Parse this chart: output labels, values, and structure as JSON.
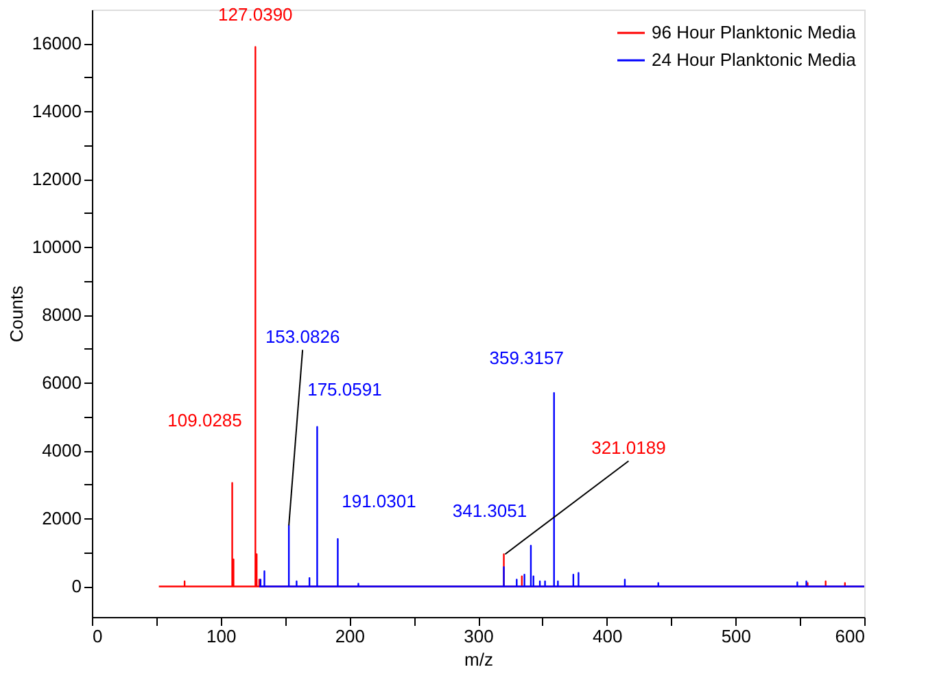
{
  "chart_data": {
    "type": "line",
    "xlabel": "m/z",
    "ylabel": "Counts",
    "xlim": [
      0,
      600
    ],
    "xticks": [
      0,
      {
        "value": 50,
        "label": null
      },
      100,
      {
        "value": 150,
        "label": null
      },
      200,
      {
        "value": 250,
        "label": null
      },
      300,
      {
        "value": 350,
        "label": null
      },
      400,
      {
        "value": 450,
        "label": null
      },
      500,
      {
        "value": 550,
        "label": null
      },
      600
    ],
    "ylim": [
      -900,
      17000
    ],
    "yticks": [
      0,
      {
        "value": 1000,
        "label": null
      },
      2000,
      {
        "value": 3000,
        "label": null
      },
      4000,
      {
        "value": 5000,
        "label": null
      },
      6000,
      {
        "value": 7000,
        "label": null
      },
      8000,
      {
        "value": 9000,
        "label": null
      },
      10000,
      {
        "value": 11000,
        "label": null
      },
      12000,
      {
        "value": 13000,
        "label": null
      },
      14000,
      {
        "value": 15000,
        "label": null
      },
      16000
    ],
    "grid": false,
    "legend": "top right",
    "marker": "none",
    "line_style": "solid",
    "series": [
      {
        "name": "96 Hour Planktonic Media",
        "color": "#ff0000",
        "x": [
          52,
          72,
          72,
          72,
          109,
          109,
          109,
          110,
          110,
          110,
          127,
          127,
          127,
          128,
          128,
          128,
          130,
          130,
          130,
          320,
          320,
          320,
          334,
          334,
          334,
          556,
          556,
          556,
          570,
          570,
          570,
          585,
          585,
          585,
          600
        ],
        "values": [
          0,
          0,
          150,
          0,
          0,
          3050,
          0,
          0,
          800,
          0,
          0,
          15900,
          0,
          0,
          950,
          0,
          0,
          200,
          0,
          0,
          950,
          0,
          0,
          300,
          0,
          0,
          100,
          0,
          0,
          150,
          0,
          0,
          100,
          0,
          0
        ]
      },
      {
        "name": "24 Hour Planktonic Media",
        "color": "#0000ff",
        "x": [
          130,
          131,
          131,
          131,
          134,
          134,
          134,
          153,
          153,
          153,
          159,
          159,
          159,
          169,
          169,
          169,
          175,
          175,
          175,
          191,
          191,
          191,
          207,
          207,
          207,
          320,
          320,
          320,
          330,
          330,
          330,
          336,
          336,
          336,
          341,
          341,
          341,
          343,
          343,
          343,
          348,
          348,
          348,
          352,
          352,
          352,
          359,
          359,
          359,
          362,
          362,
          362,
          374,
          374,
          374,
          378,
          378,
          378,
          414,
          414,
          414,
          440,
          440,
          440,
          548,
          548,
          548,
          555,
          555,
          555,
          600
        ],
        "values": [
          0,
          0,
          200,
          0,
          0,
          450,
          0,
          0,
          1800,
          0,
          0,
          150,
          0,
          0,
          250,
          0,
          0,
          4700,
          0,
          0,
          1400,
          0,
          0,
          80,
          0,
          0,
          570,
          0,
          0,
          200,
          0,
          0,
          350,
          0,
          0,
          1200,
          0,
          0,
          300,
          0,
          0,
          150,
          0,
          0,
          150,
          0,
          0,
          5700,
          0,
          0,
          150,
          0,
          0,
          350,
          0,
          0,
          400,
          0,
          0,
          200,
          0,
          0,
          100,
          0,
          0,
          120,
          0,
          0,
          150,
          0,
          0
        ]
      }
    ],
    "annotations": [
      {
        "text": "127.0390",
        "x": 127,
        "y": 15900
      },
      {
        "text": "109.0285",
        "x": 109,
        "y": 3050
      },
      {
        "text": "153.0826",
        "x": 153,
        "y": 1800
      },
      {
        "text": "175.0591",
        "x": 175,
        "y": 4700
      },
      {
        "text": "191.0301",
        "x": 191,
        "y": 1400
      },
      {
        "text": "359.3157",
        "x": 359,
        "y": 5700
      },
      {
        "text": "341.3051",
        "x": 341,
        "y": 1200
      },
      {
        "text": "321.0189",
        "x": 321,
        "y": 950
      }
    ]
  }
}
